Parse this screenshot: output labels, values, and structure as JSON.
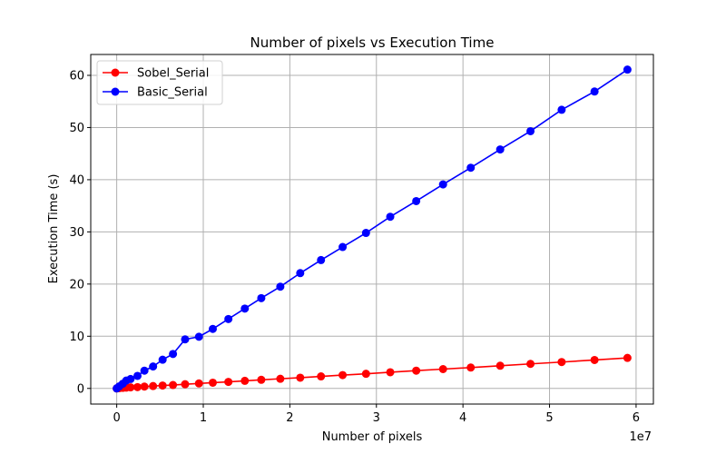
{
  "chart_data": {
    "type": "line",
    "title": "Number of pixels vs Execution Time",
    "xlabel": "Number of pixels",
    "ylabel": "Execution Time (s)",
    "x_offset_label": "1e7",
    "xlim": [
      -3000000,
      62000000
    ],
    "ylim": [
      -3,
      64
    ],
    "x_ticks": [
      0,
      10000000,
      20000000,
      30000000,
      40000000,
      50000000,
      60000000
    ],
    "x_tick_labels": [
      "0",
      "1",
      "2",
      "3",
      "4",
      "5",
      "6"
    ],
    "y_ticks": [
      0,
      10,
      20,
      30,
      40,
      50,
      60
    ],
    "y_tick_labels": [
      "0",
      "10",
      "20",
      "30",
      "40",
      "50",
      "60"
    ],
    "grid": true,
    "legend_position": "top-left",
    "x": [
      0,
      300000,
      700000,
      1100000,
      1600000,
      2400000,
      3200000,
      4200000,
      5300000,
      6500000,
      7900000,
      9500000,
      11100000,
      12900000,
      14800000,
      16700000,
      18900000,
      21200000,
      23600000,
      26100000,
      28800000,
      31600000,
      34600000,
      37700000,
      40900000,
      44300000,
      47800000,
      51400000,
      55200000,
      59000000
    ],
    "series": [
      {
        "name": "Sobel_Serial",
        "color": "#ff0000",
        "values": [
          0.0,
          0.05,
          0.1,
          0.15,
          0.2,
          0.25,
          0.35,
          0.45,
          0.55,
          0.65,
          0.8,
          0.95,
          1.1,
          1.25,
          1.45,
          1.65,
          1.85,
          2.05,
          2.3,
          2.55,
          2.8,
          3.1,
          3.4,
          3.7,
          4.0,
          4.35,
          4.7,
          5.05,
          5.45,
          5.85
        ]
      },
      {
        "name": "Basic_Serial",
        "color": "#0000ff",
        "values": [
          0.0,
          0.4,
          0.9,
          1.5,
          1.8,
          2.4,
          3.4,
          4.2,
          5.5,
          6.6,
          9.4,
          9.9,
          11.4,
          13.3,
          15.3,
          17.3,
          19.5,
          22.1,
          24.6,
          27.1,
          29.8,
          32.9,
          35.9,
          39.1,
          42.3,
          45.8,
          49.3,
          53.4,
          56.9,
          61.1
        ]
      }
    ]
  }
}
